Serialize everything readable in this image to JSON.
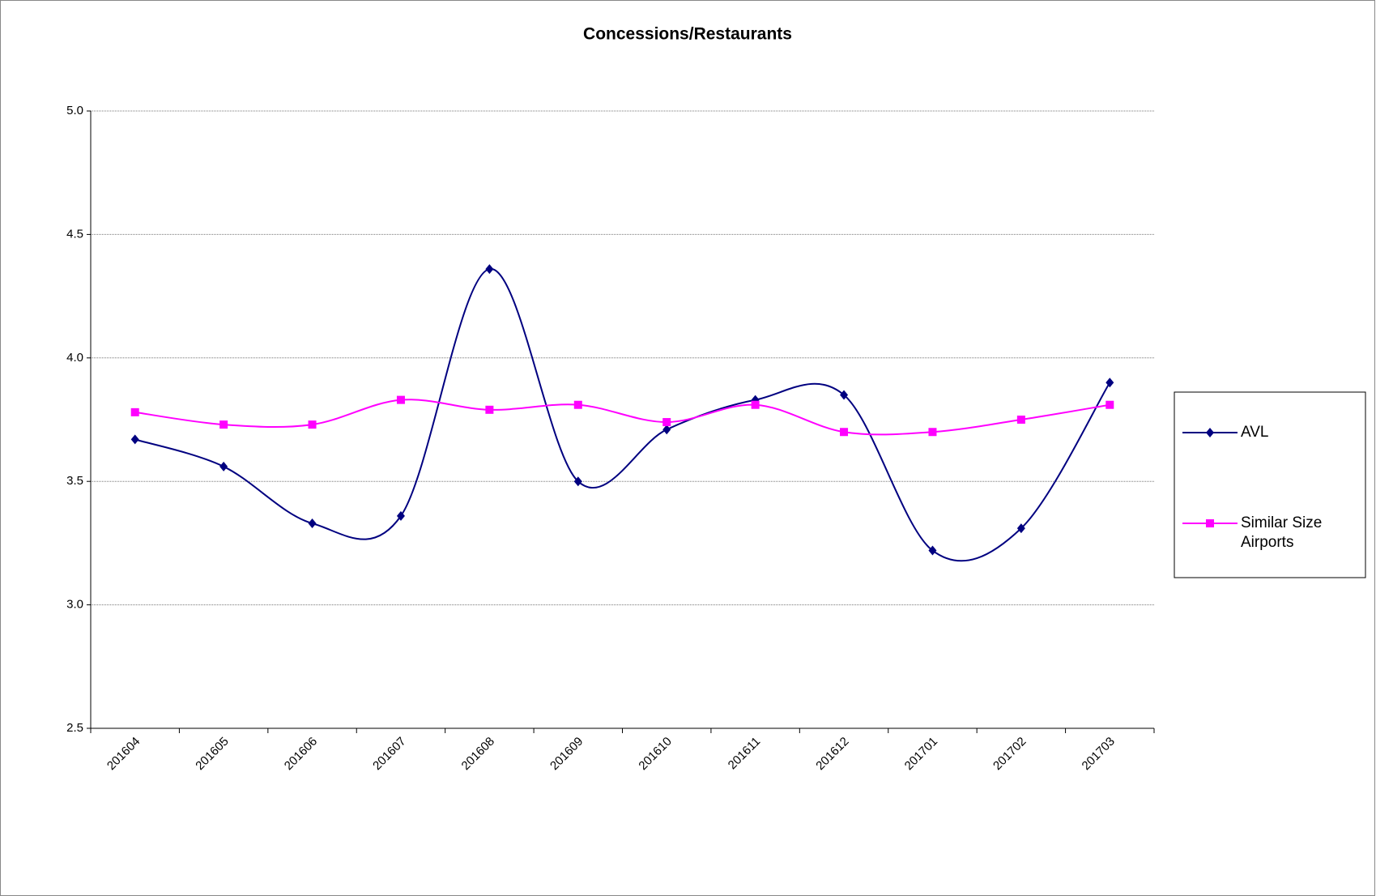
{
  "chart_data": {
    "type": "line",
    "title": "Concessions/Restaurants",
    "categories": [
      "201604",
      "201605",
      "201606",
      "201607",
      "201608",
      "201609",
      "201610",
      "201611",
      "201612",
      "201701",
      "201702",
      "201703"
    ],
    "series": [
      {
        "name": "AVL",
        "color": "#000080",
        "marker": "diamond",
        "values": [
          3.67,
          3.56,
          3.33,
          3.36,
          4.36,
          3.5,
          3.71,
          3.83,
          3.85,
          3.22,
          3.31,
          3.9
        ]
      },
      {
        "name": "Similar Size Airports",
        "color": "#ff00ff",
        "marker": "square",
        "values": [
          3.78,
          3.73,
          3.73,
          3.83,
          3.79,
          3.81,
          3.74,
          3.81,
          3.7,
          3.7,
          3.75,
          3.81
        ]
      }
    ],
    "ylim": [
      2.5,
      5.0
    ],
    "yticks": [
      2.5,
      {
        "value": 3.0,
        "label": "3.0"
      },
      3.5,
      {
        "value": 4.0,
        "label": "4.0"
      },
      4.5,
      {
        "value": 5.0,
        "label": "5.0"
      }
    ],
    "grid": true,
    "smooth": true,
    "legend": "right"
  }
}
